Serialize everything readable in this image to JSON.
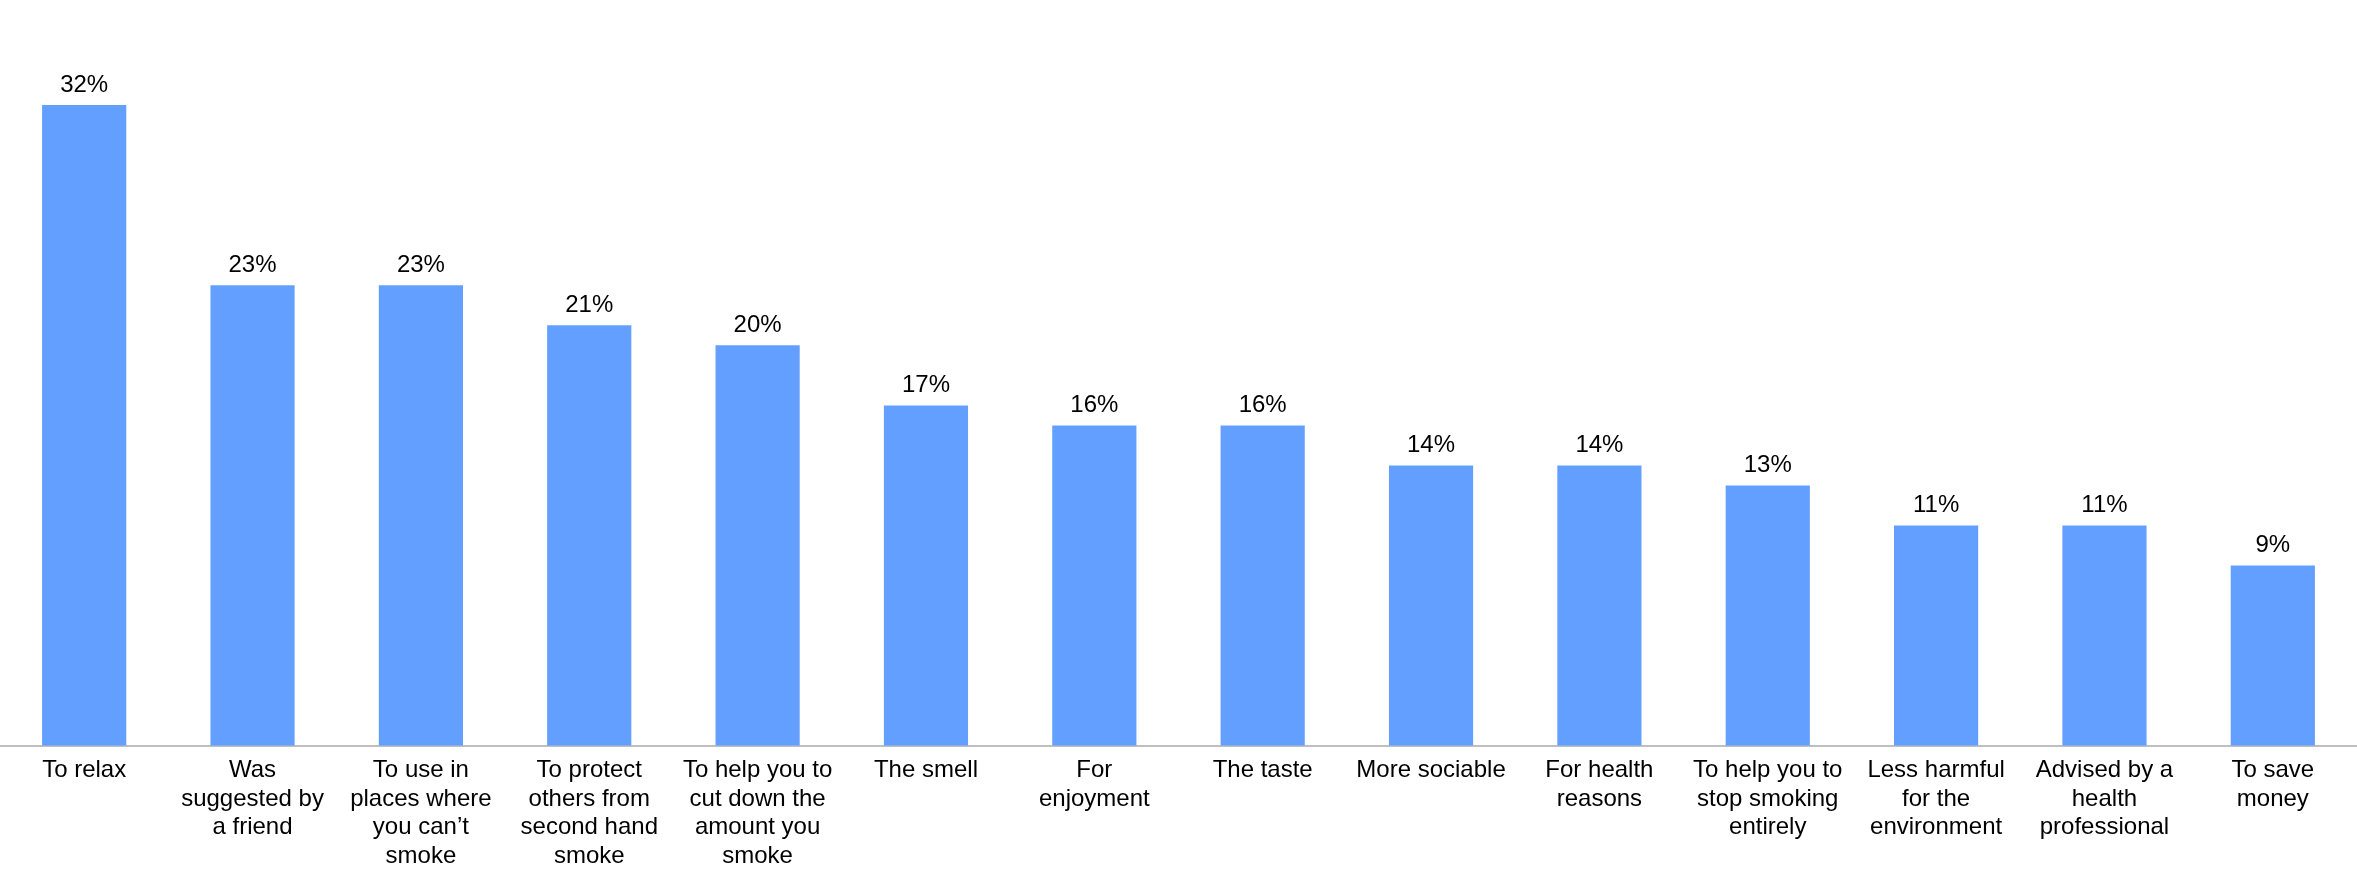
{
  "chart_data": {
    "type": "bar",
    "categories": [
      "To relax",
      "Was suggested by a friend",
      "To use in places where you can’t smoke",
      "To protect others from second hand smoke",
      "To help you to cut down the amount you smoke",
      "The smell",
      "For enjoyment",
      "The taste",
      "More sociable",
      "For health reasons",
      "To help you to stop smoking entirely",
      "Less harmful for the environment",
      "Advised by a health professional",
      "To save money"
    ],
    "values": [
      32,
      23,
      23,
      21,
      20,
      17,
      16,
      16,
      14,
      14,
      13,
      11,
      11,
      9
    ],
    "color": "#639fff",
    "data_labels": true,
    "value_labels": [
      "32%",
      "23%",
      "23%",
      "21%",
      "20%",
      "17%",
      "16%",
      "16%",
      "14%",
      "14%",
      "13%",
      "11%",
      "11%",
      "9%"
    ],
    "grid": false,
    "legend": false
  }
}
